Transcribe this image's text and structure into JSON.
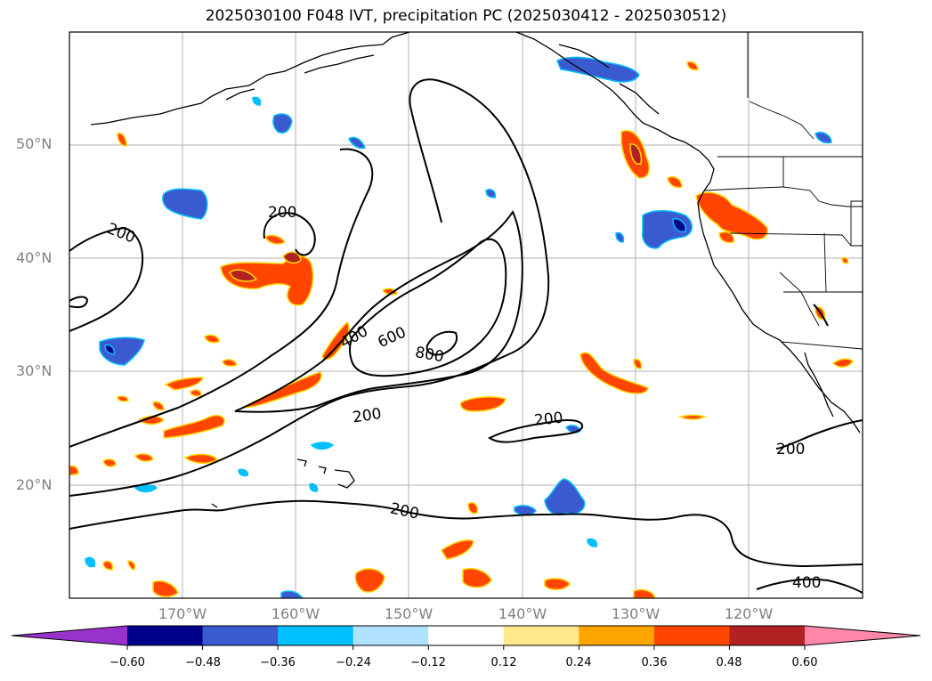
{
  "title": "2025030100 F048 IVT, precipitation PC (2025030412 - 2025030512)",
  "lat_labels": [
    "50°N",
    "40°N",
    "30°N",
    "20°N"
  ],
  "lon_labels": [
    "170°W",
    "160°W",
    "150°W",
    "140°W",
    "130°W",
    "120°W"
  ],
  "contour_labels": [
    "200",
    "200",
    "400",
    "600",
    "800",
    "200",
    "200",
    "200",
    "200",
    "400"
  ],
  "colorbar": {
    "colors": [
      "#9932cc",
      "#00008b",
      "#3a5bcf",
      "#00bfff",
      "#b0e2ff",
      "#ffffff",
      "#ffe88c",
      "#ffa500",
      "#ff4500",
      "#b22222",
      "#ff88aa"
    ],
    "ticks": [
      "−0.60",
      "−0.48",
      "−0.36",
      "−0.24",
      "−0.12",
      "0.12",
      "0.24",
      "0.36",
      "0.48",
      "0.60"
    ]
  },
  "map": {
    "extent_lon": [
      -180,
      -110
    ],
    "extent_lat": [
      10,
      60
    ],
    "gridlines": true,
    "contour_color": "#000000",
    "land_outline_color": "#000000"
  }
}
